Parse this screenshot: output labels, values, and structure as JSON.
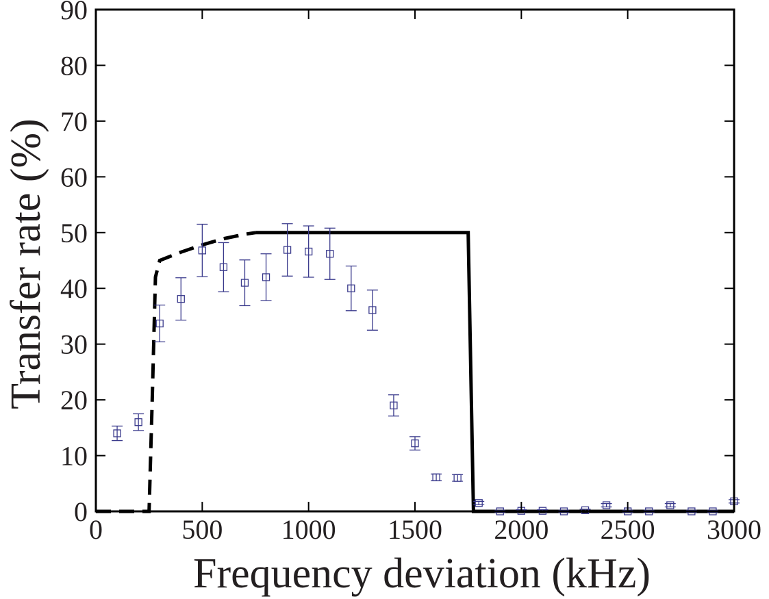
{
  "chart_data": {
    "type": "scatter",
    "title": "",
    "xlabel": "Frequency deviation (kHz)",
    "ylabel": "Transfer rate (%)",
    "xlim": [
      0,
      3000
    ],
    "ylim": [
      0,
      90
    ],
    "xticks": [
      0,
      500,
      1000,
      1500,
      2000,
      2500,
      3000
    ],
    "yticks": [
      0,
      10,
      20,
      30,
      40,
      50,
      60,
      70,
      80,
      90
    ],
    "grid": false,
    "legend": "none",
    "colors": {
      "points": "#3a3a8c",
      "lines": "#000000",
      "axes": "#000000",
      "text": "#231f20"
    },
    "series": [
      {
        "type": "scatter",
        "marker": "open-square",
        "errorbars": true,
        "x": [
          100,
          200,
          300,
          400,
          500,
          600,
          700,
          800,
          900,
          1000,
          1100,
          1200,
          1300,
          1400,
          1500,
          1600,
          1700,
          1800,
          1900,
          2000,
          2100,
          2200,
          2300,
          2400,
          2500,
          2600,
          2700,
          2800,
          2900,
          3000
        ],
        "y": [
          14,
          16,
          33.7,
          38.1,
          46.8,
          43.8,
          41,
          42,
          46.9,
          46.6,
          46.2,
          40,
          36.1,
          19,
          12.2,
          6.1,
          6,
          1.5,
          0,
          0.1,
          0.1,
          0,
          0.2,
          1.1,
          0,
          0,
          1.1,
          0,
          0,
          1.8
        ],
        "err": [
          1.3,
          1.5,
          3.3,
          3.8,
          4.7,
          4.4,
          4.1,
          4.2,
          4.7,
          4.6,
          4.6,
          4.0,
          3.6,
          1.9,
          1.2,
          0.6,
          0.6,
          0.3,
          0.2,
          0.2,
          0.2,
          0.2,
          0.2,
          0.3,
          0.2,
          0.2,
          0.3,
          0.2,
          0.2,
          0.3
        ]
      },
      {
        "type": "line",
        "style": "dashed",
        "x": [
          0,
          200,
          250,
          265,
          280,
          300,
          400,
          500,
          600,
          700,
          750
        ],
        "y": [
          0,
          0,
          0,
          20,
          42,
          45,
          46.5,
          47.8,
          48.9,
          49.7,
          50
        ]
      },
      {
        "type": "line",
        "style": "solid",
        "x": [
          750,
          1750,
          1775,
          3000
        ],
        "y": [
          50,
          50,
          0,
          0
        ]
      }
    ]
  }
}
